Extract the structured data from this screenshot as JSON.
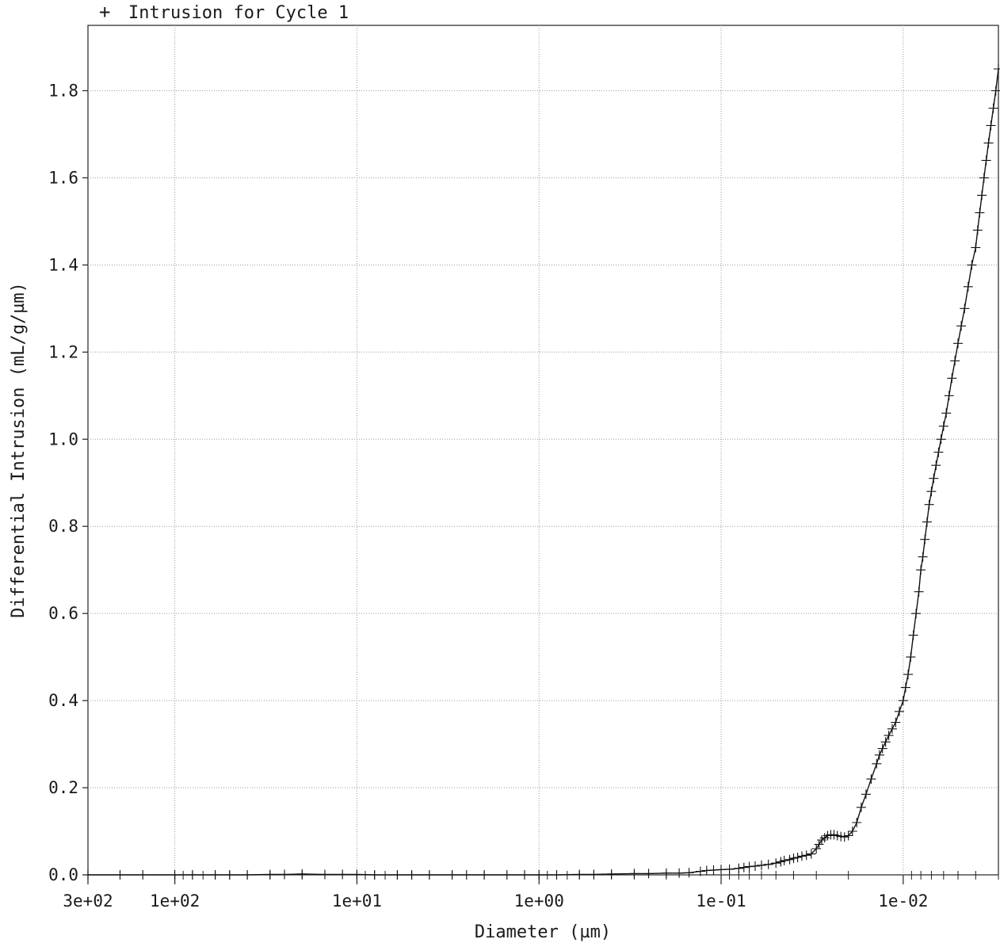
{
  "chart_data": {
    "type": "scatter",
    "legend": {
      "entries": [
        {
          "marker": "+",
          "label": "Intrusion for Cycle 1"
        }
      ],
      "placement": "top-left"
    },
    "xlabel": "Diameter (µm)",
    "ylabel": "Differential Intrusion (mL/g/µm)",
    "x_scale": "log",
    "x_direction": "decreasing",
    "xlim": [
      300,
      0.003
    ],
    "ylim": [
      0,
      1.95
    ],
    "grid": true,
    "x_ticks": [
      {
        "value": 300,
        "label": "3e+02"
      },
      {
        "value": 100,
        "label": "1e+02"
      },
      {
        "value": 10,
        "label": "1e+01"
      },
      {
        "value": 1,
        "label": "1e+00"
      },
      {
        "value": 0.1,
        "label": "1e-01"
      },
      {
        "value": 0.01,
        "label": "1e-02"
      }
    ],
    "y_ticks": [
      {
        "value": 0.0,
        "label": "0.0"
      },
      {
        "value": 0.2,
        "label": "0.2"
      },
      {
        "value": 0.4,
        "label": "0.4"
      },
      {
        "value": 0.6,
        "label": "0.6"
      },
      {
        "value": 0.8,
        "label": "0.8"
      },
      {
        "value": 1.0,
        "label": "1.0"
      },
      {
        "value": 1.2,
        "label": "1.2"
      },
      {
        "value": 1.4,
        "label": "1.4"
      },
      {
        "value": 1.6,
        "label": "1.6"
      },
      {
        "value": 1.8,
        "label": "1.8"
      }
    ],
    "series": [
      {
        "name": "Intrusion for Cycle 1",
        "marker": "+",
        "x": [
          300,
          200,
          150,
          100,
          80,
          60,
          50,
          40,
          30,
          25,
          20,
          15,
          12,
          10,
          8,
          6,
          5,
          4,
          3,
          2.5,
          2,
          1.5,
          1.2,
          1,
          0.8,
          0.6,
          0.5,
          0.4,
          0.3,
          0.25,
          0.2,
          0.17,
          0.15,
          0.13,
          0.12,
          0.11,
          0.1,
          0.09,
          0.08,
          0.075,
          0.07,
          0.065,
          0.06,
          0.055,
          0.05,
          0.047,
          0.045,
          0.042,
          0.04,
          0.038,
          0.036,
          0.034,
          0.032,
          0.03,
          0.029,
          0.028,
          0.027,
          0.026,
          0.025,
          0.024,
          0.023,
          0.022,
          0.021,
          0.02,
          0.019,
          0.018,
          0.017,
          0.016,
          0.015,
          0.014,
          0.0135,
          0.013,
          0.0125,
          0.012,
          0.0115,
          0.011,
          0.0105,
          0.01,
          0.0097,
          0.0094,
          0.0091,
          0.0088,
          0.0085,
          0.0082,
          0.008,
          0.0078,
          0.0076,
          0.0074,
          0.0072,
          0.007,
          0.0068,
          0.0066,
          0.0064,
          0.0062,
          0.006,
          0.0058,
          0.0056,
          0.0054,
          0.0052,
          0.005,
          0.0048,
          0.0046,
          0.0044,
          0.0042,
          0.004,
          0.0039,
          0.0038,
          0.0037,
          0.0036,
          0.0035,
          0.0034,
          0.0033,
          0.0032,
          0.0031,
          0.003
        ],
        "y": [
          0,
          0,
          0,
          0,
          0,
          0,
          0,
          0,
          0.001,
          0.001,
          0.002,
          0.001,
          0.001,
          0.001,
          0,
          0,
          0,
          0,
          0,
          0,
          0,
          0,
          0,
          0,
          0,
          0.001,
          0.001,
          0.002,
          0.003,
          0.003,
          0.004,
          0.004,
          0.005,
          0.008,
          0.01,
          0.011,
          0.012,
          0.013,
          0.015,
          0.017,
          0.019,
          0.02,
          0.022,
          0.024,
          0.027,
          0.03,
          0.033,
          0.035,
          0.038,
          0.04,
          0.043,
          0.045,
          0.048,
          0.06,
          0.07,
          0.08,
          0.085,
          0.09,
          0.092,
          0.092,
          0.09,
          0.088,
          0.087,
          0.09,
          0.1,
          0.12,
          0.155,
          0.185,
          0.22,
          0.255,
          0.275,
          0.29,
          0.305,
          0.32,
          0.335,
          0.35,
          0.375,
          0.4,
          0.43,
          0.46,
          0.5,
          0.55,
          0.6,
          0.65,
          0.7,
          0.73,
          0.77,
          0.81,
          0.85,
          0.88,
          0.91,
          0.94,
          0.97,
          1.0,
          1.03,
          1.06,
          1.1,
          1.14,
          1.18,
          1.22,
          1.26,
          1.3,
          1.35,
          1.4,
          1.44,
          1.48,
          1.52,
          1.56,
          1.6,
          1.64,
          1.68,
          1.72,
          1.76,
          1.8,
          1.85
        ]
      }
    ]
  }
}
